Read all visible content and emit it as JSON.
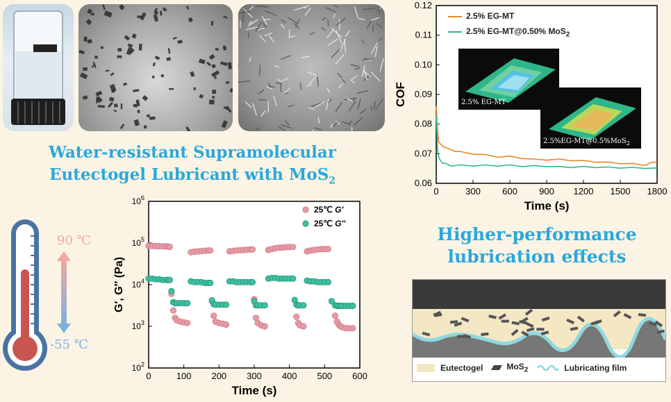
{
  "headline": {
    "line1": "Water-resistant Supramolecular",
    "line2_main": "Eutectogel Lubricant with MoS",
    "line2_sub": "2"
  },
  "tagline": {
    "line1": "Higher-performance",
    "line2": "lubrication effects"
  },
  "thermometer": {
    "high": "90 ℃",
    "low": "-55 ℃",
    "colors": {
      "high": "#f0a8a3",
      "low": "#7fb0e0",
      "mercury": "#c8554f"
    }
  },
  "diagram": {
    "legend": [
      {
        "label": "Eutectogel",
        "icon": "eutectogel-swatch"
      },
      {
        "label": "MoS",
        "sub": "2",
        "icon": "mos2-flake"
      },
      {
        "label": "Lubricating film",
        "icon": "film-wave"
      }
    ],
    "colors": {
      "top": "#3a3a3a",
      "gel": "#f3e7c4",
      "film": "#8fd8e0",
      "substrate": "#777777"
    }
  },
  "chart_data": [
    {
      "type": "line",
      "xlabel": "Time (s)",
      "ylabel": "COF",
      "xlim": [
        0,
        1800
      ],
      "ylim": [
        0.06,
        0.12
      ],
      "xticks": [
        "0",
        "300",
        "600",
        "900",
        "1200",
        "1500",
        "1800"
      ],
      "yticks": [
        "0.06",
        "0.07",
        "0.08",
        "0.09",
        "0.10",
        "0.11",
        "0.12"
      ],
      "legend_position": "top-left",
      "series": [
        {
          "name": "2.5% EG-MT",
          "color": "#e8862a",
          "x": [
            0,
            10,
            20,
            40,
            60,
            100,
            150,
            200,
            300,
            400,
            500,
            600,
            700,
            800,
            900,
            1000,
            1100,
            1200,
            1300,
            1400,
            1500,
            1600,
            1700,
            1750,
            1800
          ],
          "y": [
            0.086,
            0.078,
            0.074,
            0.073,
            0.0725,
            0.0715,
            0.071,
            0.0705,
            0.07,
            0.0695,
            0.069,
            0.069,
            0.0685,
            0.068,
            0.068,
            0.068,
            0.0678,
            0.0675,
            0.0673,
            0.067,
            0.0668,
            0.0665,
            0.0662,
            0.0668,
            0.0672
          ]
        },
        {
          "name": "2.5% EG-MT@0.50% MoS",
          "name_sub": "2",
          "color": "#2cb897",
          "x": [
            0,
            10,
            20,
            30,
            50,
            80,
            120,
            200,
            300,
            400,
            500,
            600,
            700,
            800,
            900,
            1000,
            1100,
            1200,
            1300,
            1400,
            1500,
            1600,
            1700,
            1800
          ],
          "y": [
            0.083,
            0.072,
            0.069,
            0.068,
            0.067,
            0.0665,
            0.066,
            0.066,
            0.066,
            0.066,
            0.066,
            0.066,
            0.0658,
            0.0658,
            0.0658,
            0.0655,
            0.0655,
            0.0655,
            0.0655,
            0.0653,
            0.0653,
            0.0652,
            0.0652,
            0.0652
          ]
        }
      ],
      "insets": [
        {
          "label": "2.5% EG-MT"
        },
        {
          "label": "2.5%EG-MT@0.5%MoS",
          "sub": "2"
        }
      ]
    },
    {
      "type": "scatter",
      "xlabel": "Time (s)",
      "ylabel": "G′, G″ (Pa)",
      "xlim": [
        0,
        600
      ],
      "ylim_log10": [
        2,
        6
      ],
      "log_y": true,
      "xticks": [
        "0",
        "100",
        "200",
        "300",
        "400",
        "500",
        "600"
      ],
      "yticks": [
        {
          "base": "10",
          "exp": "2"
        },
        {
          "base": "10",
          "exp": "3"
        },
        {
          "base": "10",
          "exp": "4"
        },
        {
          "base": "10",
          "exp": "5"
        },
        {
          "base": "10",
          "exp": "6"
        }
      ],
      "legend_position": "top-right",
      "series": [
        {
          "name_prefix": "25℃ ",
          "name_italic": "G′",
          "color": "#e89aa4",
          "stroke": "#c97c86",
          "x": [
            0,
            10,
            20,
            30,
            40,
            50,
            55,
            60,
            65,
            70,
            75,
            80,
            90,
            100,
            110,
            120,
            130,
            140,
            150,
            160,
            170,
            175,
            180,
            185,
            190,
            200,
            210,
            220,
            230,
            240,
            250,
            260,
            270,
            280,
            290,
            295,
            300,
            305,
            310,
            320,
            330,
            340,
            350,
            360,
            370,
            380,
            390,
            400,
            410,
            415,
            420,
            425,
            430,
            440,
            450,
            460,
            470,
            480,
            490,
            500,
            510,
            520,
            530,
            535,
            540,
            545,
            550,
            560,
            570,
            580
          ],
          "y": [
            85000,
            85000,
            84000,
            84000,
            83000,
            83000,
            82000,
            81000,
            6000,
            2400,
            1600,
            1400,
            1300,
            1250,
            1200,
            60000,
            62000,
            63000,
            64000,
            65000,
            66000,
            66000,
            4000,
            1800,
            1300,
            1200,
            1150,
            1100,
            63000,
            65000,
            66000,
            67000,
            68000,
            69000,
            70000,
            70000,
            4500,
            1600,
            1200,
            1050,
            1000,
            68000,
            72000,
            75000,
            77000,
            78000,
            79000,
            80000,
            80000,
            4200,
            1700,
            1200,
            1050,
            1000,
            63000,
            66000,
            68000,
            70000,
            71000,
            72000,
            72000,
            4000,
            1800,
            1300,
            1100,
            1000,
            950,
            900,
            900,
            900
          ]
        },
        {
          "name_prefix": "25℃ ",
          "name_italic": "G″",
          "color": "#3fbf9f",
          "stroke": "#25957c",
          "x": [
            0,
            10,
            20,
            30,
            40,
            50,
            55,
            60,
            65,
            70,
            75,
            80,
            90,
            100,
            110,
            120,
            130,
            140,
            150,
            160,
            170,
            175,
            180,
            185,
            190,
            200,
            210,
            220,
            230,
            240,
            250,
            260,
            270,
            280,
            290,
            295,
            300,
            305,
            310,
            320,
            330,
            340,
            350,
            360,
            370,
            380,
            390,
            400,
            410,
            415,
            420,
            425,
            430,
            440,
            450,
            460,
            470,
            480,
            490,
            500,
            510,
            520,
            530,
            535,
            540,
            545,
            550,
            560,
            570,
            580
          ],
          "y": [
            14000,
            14000,
            13500,
            13500,
            13000,
            13000,
            13000,
            13000,
            7000,
            3800,
            3600,
            3600,
            3600,
            3600,
            3600,
            12000,
            11500,
            11500,
            11500,
            11000,
            11000,
            11000,
            4200,
            3400,
            3300,
            3300,
            3300,
            3300,
            12000,
            12000,
            11500,
            11500,
            11500,
            11500,
            11500,
            11500,
            4000,
            3200,
            3200,
            3200,
            3200,
            14000,
            14500,
            14500,
            14000,
            14000,
            14000,
            14000,
            14000,
            4300,
            3300,
            3200,
            3200,
            3200,
            12500,
            12000,
            12000,
            11500,
            11500,
            11500,
            11500,
            4000,
            3200,
            3100,
            3100,
            3100,
            3100,
            3100,
            3100,
            3100
          ]
        }
      ]
    }
  ]
}
